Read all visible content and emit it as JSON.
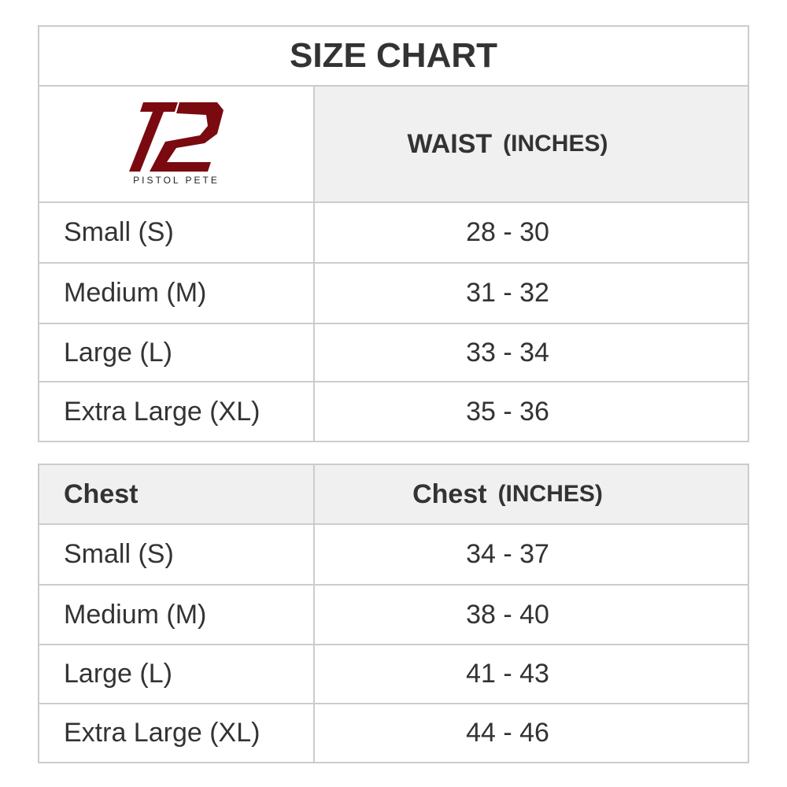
{
  "title": "SIZE CHART",
  "logo": {
    "mark": "P2",
    "brand": "PISTOL PETE",
    "color": "#7a0a10"
  },
  "waist": {
    "header": "WAIST",
    "unit": "(INCHES)",
    "rows": [
      {
        "size": "Small (S)",
        "value": "28 - 30"
      },
      {
        "size": "Medium (M)",
        "value": "31 - 32"
      },
      {
        "size": "Large (L)",
        "value": "33 - 34"
      },
      {
        "size": "Extra Large (XL)",
        "value": "35 - 36"
      }
    ]
  },
  "chest": {
    "label": "Chest",
    "header": "Chest",
    "unit": "(INCHES)",
    "rows": [
      {
        "size": "Small (S)",
        "value": "34 - 37"
      },
      {
        "size": "Medium (M)",
        "value": "38 - 40"
      },
      {
        "size": "Large (L)",
        "value": "41 - 43"
      },
      {
        "size": "Extra Large (XL)",
        "value": "44 - 46"
      }
    ]
  }
}
